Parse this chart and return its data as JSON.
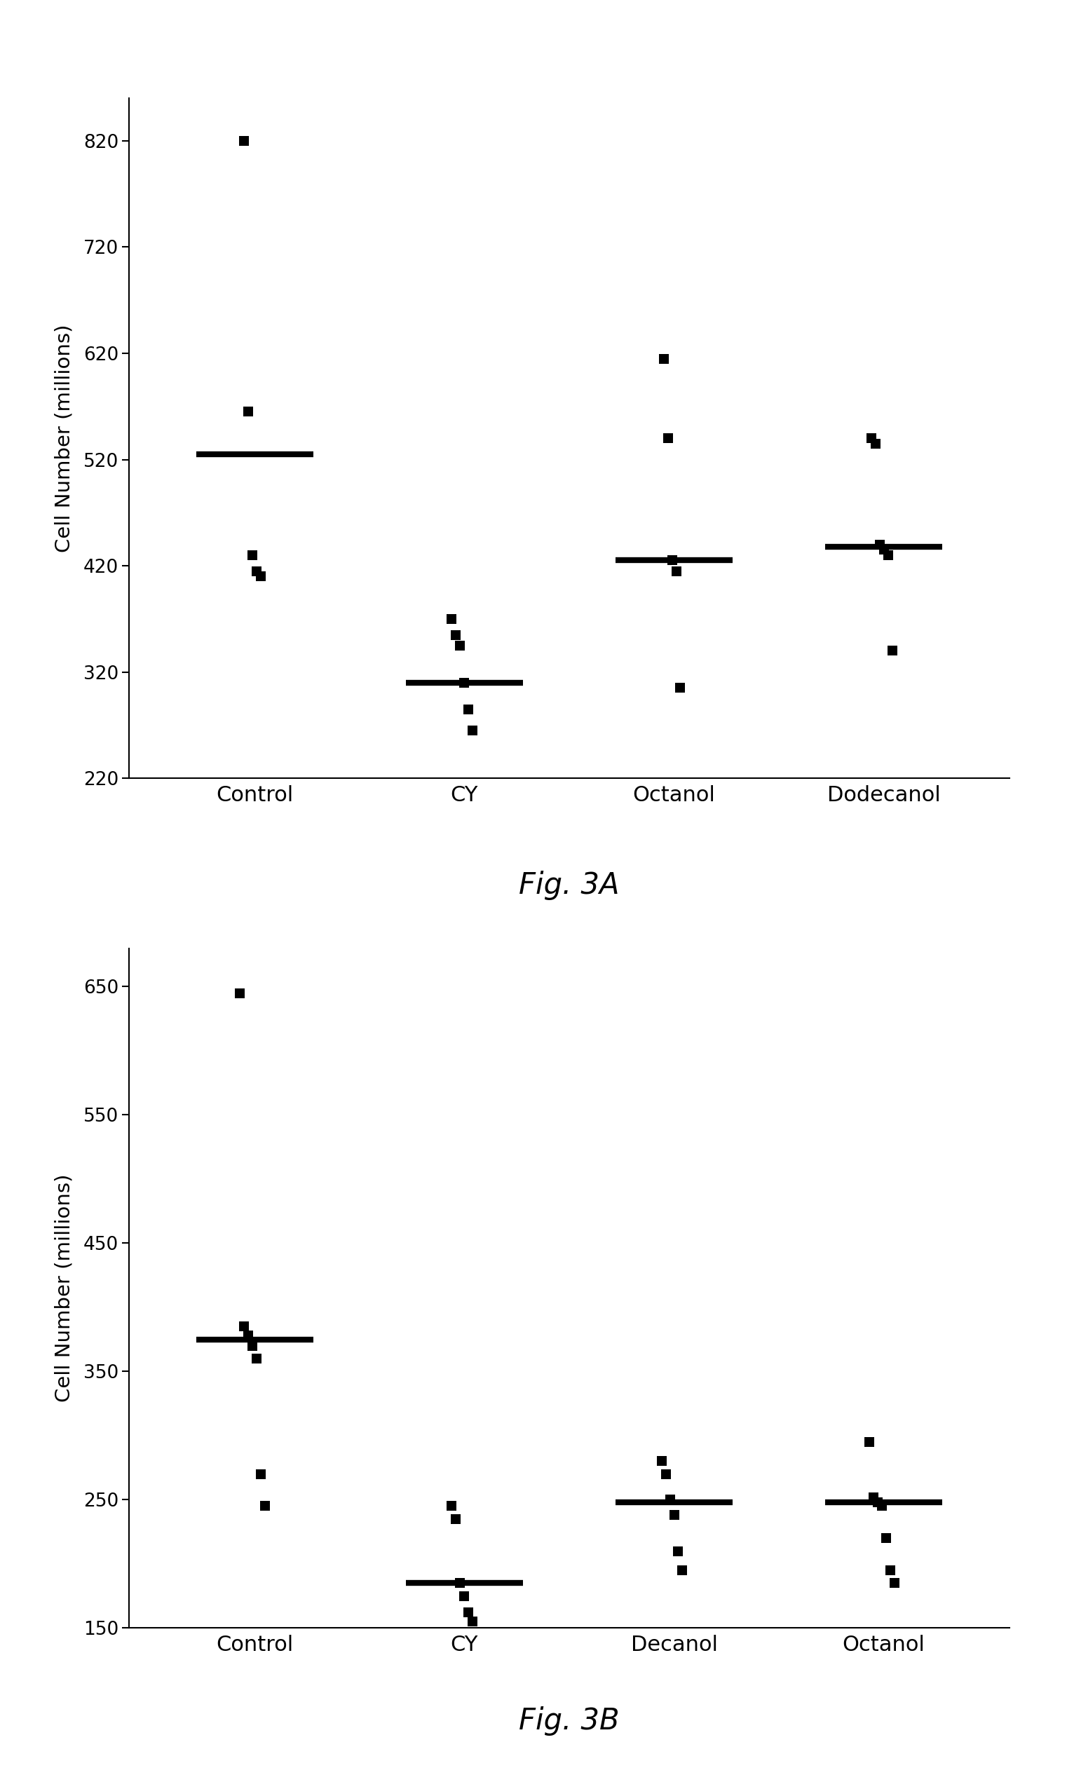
{
  "fig3a": {
    "categories": [
      "Control",
      "CY",
      "Octanol",
      "Dodecanol"
    ],
    "points": [
      [
        820,
        565,
        430,
        415,
        410
      ],
      [
        370,
        355,
        345,
        310,
        285,
        265
      ],
      [
        615,
        540,
        425,
        415,
        305
      ],
      [
        540,
        535,
        440,
        435,
        430,
        340
      ]
    ],
    "means": [
      525,
      310,
      425,
      438
    ],
    "ylabel": "Cell Number (millions)",
    "ylim": [
      220,
      860
    ],
    "yticks": [
      220,
      320,
      420,
      520,
      620,
      720,
      820
    ],
    "caption": "Fig. 3A"
  },
  "fig3b": {
    "categories": [
      "Control",
      "CY",
      "Decanol",
      "Octanol"
    ],
    "points": [
      [
        645,
        385,
        378,
        370,
        360,
        270,
        245
      ],
      [
        245,
        235,
        185,
        175,
        162,
        155
      ],
      [
        280,
        270,
        250,
        238,
        210,
        195
      ],
      [
        295,
        252,
        248,
        245,
        220,
        195,
        185
      ]
    ],
    "means": [
      375,
      185,
      248,
      248
    ],
    "ylabel": "Cell Number (millions)",
    "ylim": [
      150,
      680
    ],
    "yticks": [
      150,
      250,
      350,
      450,
      550,
      650
    ],
    "caption": "Fig. 3B"
  },
  "point_color": "#000000",
  "mean_color": "#000000",
  "background_color": "#ffffff",
  "caption_fontsize": 30,
  "ylabel_fontsize": 21,
  "tick_fontsize": 19,
  "xticklabel_fontsize": 22,
  "mean_linewidth": 6,
  "mean_halfwidth": 0.28,
  "point_size": 90,
  "point_marker": "s"
}
